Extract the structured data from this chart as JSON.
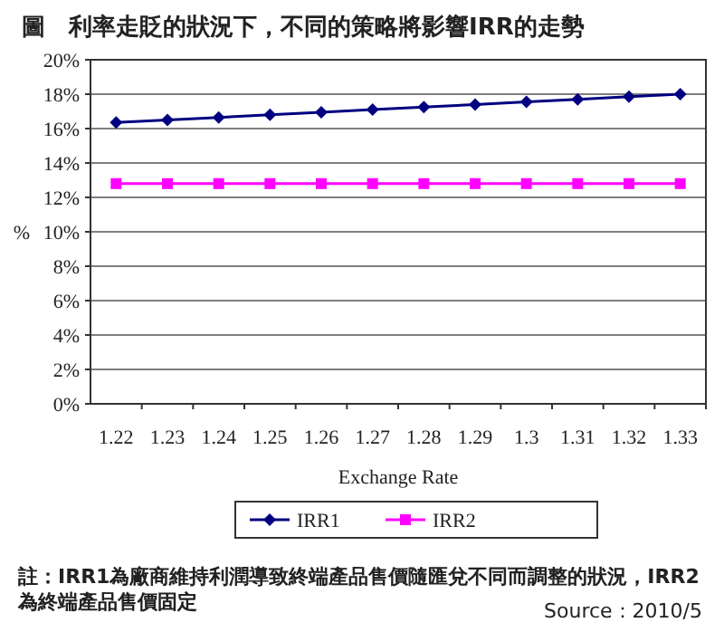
{
  "chart_data": {
    "type": "line",
    "title": "圖　利率走貶的狀況下，不同的策略將影響IRR的走勢",
    "xlabel": "Exchange Rate",
    "ylabel": "%",
    "categories": [
      "1.22",
      "1.23",
      "1.24",
      "1.25",
      "1.26",
      "1.27",
      "1.28",
      "1.29",
      "1.3",
      "1.31",
      "1.32",
      "1.33"
    ],
    "series": [
      {
        "name": "IRR1",
        "color": "#000080",
        "marker": "diamond",
        "values": [
          16.35,
          16.5,
          16.65,
          16.8,
          16.95,
          17.1,
          17.25,
          17.4,
          17.55,
          17.7,
          17.85,
          18.0
        ]
      },
      {
        "name": "IRR2",
        "color": "#ff00ff",
        "marker": "square",
        "values": [
          12.8,
          12.8,
          12.8,
          12.8,
          12.8,
          12.8,
          12.8,
          12.8,
          12.8,
          12.8,
          12.8,
          12.8
        ]
      }
    ],
    "ylim": [
      0,
      20
    ],
    "yticks": [
      {
        "value": 0,
        "label": "0%"
      },
      {
        "value": 2,
        "label": "2%"
      },
      {
        "value": 4,
        "label": "4%"
      },
      {
        "value": 6,
        "label": "6%"
      },
      {
        "value": 8,
        "label": "8%"
      },
      {
        "value": 10,
        "label": "10%"
      },
      {
        "value": 12,
        "label": "12%"
      },
      {
        "value": 14,
        "label": "14%"
      },
      {
        "value": 16,
        "label": "16%"
      },
      {
        "value": 18,
        "label": "18%"
      },
      {
        "value": 20,
        "label": "20%"
      }
    ],
    "grid": "y",
    "legend": "bottom",
    "line_style": "solid",
    "annotations": [
      "註：IRR1為廠商維持利潤導致終端產品售價隨匯兌不同而調整的狀況，IRR2為終端產品售價固定",
      "Source：2010/5"
    ]
  }
}
